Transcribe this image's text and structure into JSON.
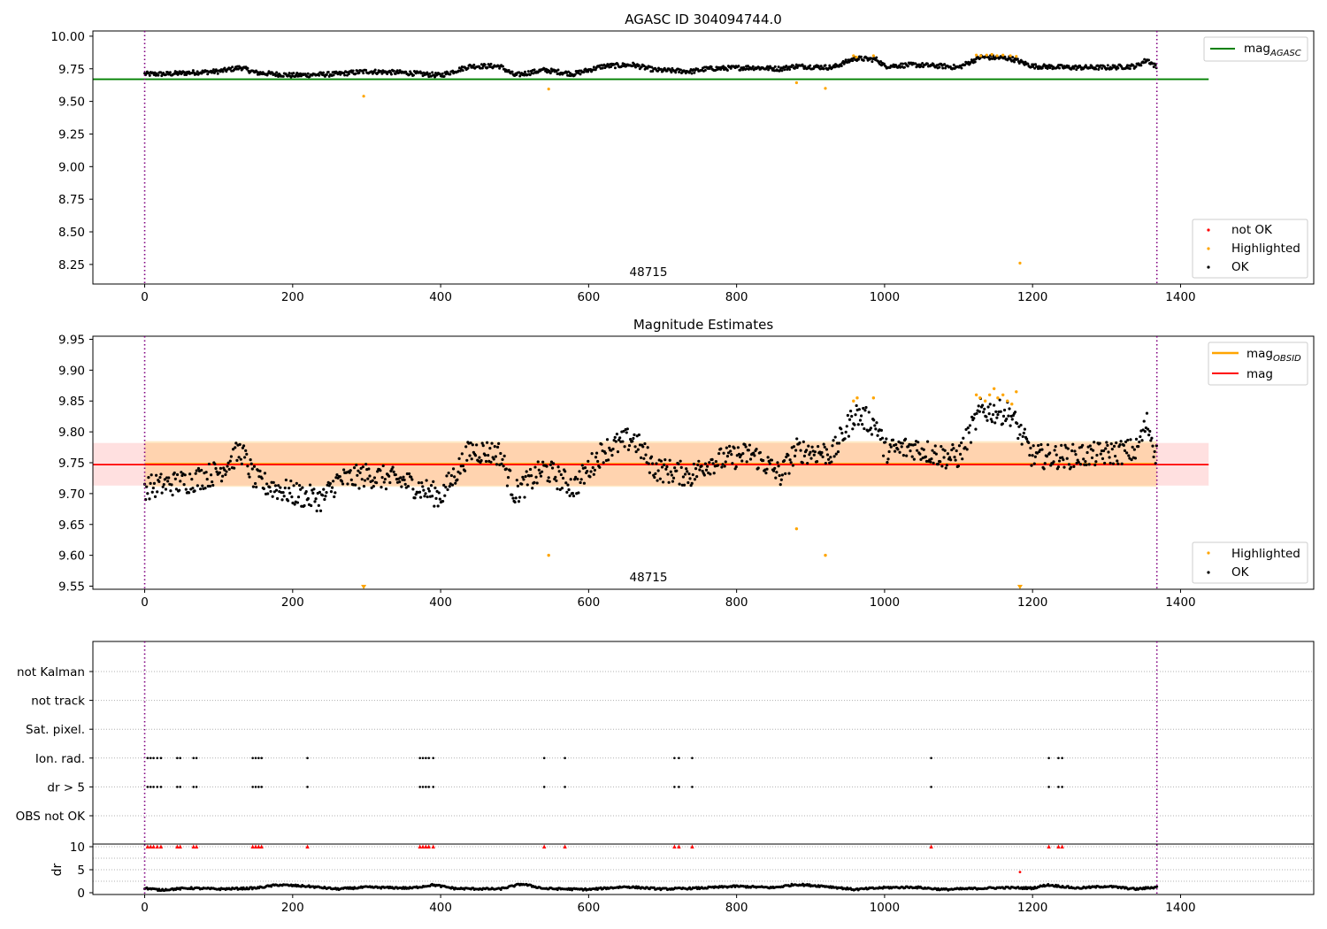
{
  "chart_data": [
    {
      "type": "scatter",
      "title": "AGASC ID 304094744.0",
      "annotation": "48715",
      "xlim": [
        -70,
        1580
      ],
      "ylim": [
        8.1,
        10.04
      ],
      "xticks": [
        0,
        200,
        400,
        600,
        800,
        1000,
        1200,
        1400
      ],
      "yticks": [
        8.25,
        8.5,
        8.75,
        9.0,
        9.25,
        9.5,
        9.75,
        10.0
      ],
      "ytick_labels": [
        "8.25",
        "8.50",
        "8.75",
        "9.00",
        "9.25",
        "9.50",
        "9.75",
        "10.00"
      ],
      "vlines": [
        0,
        1368
      ],
      "hline": {
        "name": "mag_AGASC",
        "label": "mag",
        "subscript": "AGASC",
        "y": 9.67,
        "x_range": [
          -70,
          1438
        ]
      },
      "legend_upper": [
        {
          "label": "mag",
          "subscript": "AGASC",
          "color": "#008000"
        }
      ],
      "legend_lower": [
        {
          "label": "not OK",
          "color": "#ff0000"
        },
        {
          "label": "Highlighted",
          "color": "#ffa500"
        },
        {
          "label": "OK",
          "color": "#000000"
        }
      ],
      "series": [
        {
          "name": "OK",
          "color": "#000000",
          "trend": [
            [
              0,
              9.71
            ],
            [
              30,
              9.71
            ],
            [
              60,
              9.72
            ],
            [
              100,
              9.73
            ],
            [
              130,
              9.76
            ],
            [
              150,
              9.72
            ],
            [
              200,
              9.7
            ],
            [
              260,
              9.71
            ],
            [
              300,
              9.73
            ],
            [
              350,
              9.72
            ],
            [
              400,
              9.7
            ],
            [
              440,
              9.77
            ],
            [
              480,
              9.77
            ],
            [
              500,
              9.7
            ],
            [
              540,
              9.74
            ],
            [
              580,
              9.71
            ],
            [
              620,
              9.77
            ],
            [
              660,
              9.78
            ],
            [
              690,
              9.74
            ],
            [
              740,
              9.73
            ],
            [
              760,
              9.75
            ],
            [
              820,
              9.76
            ],
            [
              860,
              9.75
            ],
            [
              880,
              9.77
            ],
            [
              930,
              9.76
            ],
            [
              960,
              9.83
            ],
            [
              990,
              9.82
            ],
            [
              1000,
              9.77
            ],
            [
              1040,
              9.78
            ],
            [
              1080,
              9.77
            ],
            [
              1100,
              9.76
            ],
            [
              1130,
              9.84
            ],
            [
              1170,
              9.83
            ],
            [
              1200,
              9.77
            ],
            [
              1250,
              9.76
            ],
            [
              1300,
              9.76
            ],
            [
              1340,
              9.77
            ],
            [
              1355,
              9.82
            ],
            [
              1368,
              9.76
            ]
          ]
        },
        {
          "name": "Highlighted",
          "color": "#ffa500",
          "points": [
            [
              296,
              9.54
            ],
            [
              546,
              9.595
            ],
            [
              881,
              9.643
            ],
            [
              920,
              9.6
            ],
            [
              1183,
              8.26
            ],
            [
              958,
              9.85
            ],
            [
              962,
              9.84
            ],
            [
              985,
              9.85
            ],
            [
              1124,
              9.855
            ],
            [
              1130,
              9.85
            ],
            [
              1138,
              9.855
            ],
            [
              1145,
              9.86
            ],
            [
              1152,
              9.85
            ],
            [
              1160,
              9.855
            ],
            [
              1170,
              9.85
            ],
            [
              1178,
              9.845
            ]
          ]
        }
      ]
    },
    {
      "type": "scatter",
      "title": "Magnitude Estimates",
      "annotation": "48715",
      "xlim": [
        -70,
        1580
      ],
      "ylim": [
        9.545,
        9.955
      ],
      "xticks": [
        0,
        200,
        400,
        600,
        800,
        1000,
        1200,
        1400
      ],
      "yticks": [
        9.55,
        9.6,
        9.65,
        9.7,
        9.75,
        9.8,
        9.85,
        9.9,
        9.95
      ],
      "ytick_labels": [
        "9.55",
        "9.60",
        "9.65",
        "9.70",
        "9.75",
        "9.80",
        "9.85",
        "9.90",
        "9.95"
      ],
      "vlines": [
        0,
        1368
      ],
      "mag_line": {
        "label": "mag",
        "y": 9.747,
        "band": [
          9.713,
          9.782
        ],
        "x_range": [
          -70,
          1438
        ],
        "color": "#ff0000"
      },
      "mag_obsid": {
        "label": "mag",
        "subscript": "OBSID",
        "y": 9.748,
        "band": [
          9.711,
          9.785
        ],
        "x_range": [
          0,
          1368
        ],
        "color": "#ffa500"
      },
      "legend_upper": [
        {
          "label": "mag",
          "subscript": "OBSID",
          "color": "#ffa500"
        },
        {
          "label": "mag",
          "subscript": "",
          "color": "#ff0000"
        }
      ],
      "legend_lower": [
        {
          "label": "Highlighted",
          "color": "#ffa500"
        },
        {
          "label": "OK",
          "color": "#000000"
        }
      ],
      "series": [
        {
          "name": "OK",
          "color": "#000000",
          "trend": [
            [
              0,
              9.71
            ],
            [
              30,
              9.715
            ],
            [
              60,
              9.72
            ],
            [
              100,
              9.735
            ],
            [
              130,
              9.77
            ],
            [
              150,
              9.72
            ],
            [
              200,
              9.7
            ],
            [
              240,
              9.69
            ],
            [
              260,
              9.72
            ],
            [
              300,
              9.73
            ],
            [
              350,
              9.72
            ],
            [
              400,
              9.695
            ],
            [
              440,
              9.77
            ],
            [
              480,
              9.765
            ],
            [
              500,
              9.7
            ],
            [
              540,
              9.74
            ],
            [
              580,
              9.71
            ],
            [
              620,
              9.77
            ],
            [
              660,
              9.79
            ],
            [
              690,
              9.74
            ],
            [
              740,
              9.73
            ],
            [
              760,
              9.75
            ],
            [
              820,
              9.765
            ],
            [
              860,
              9.73
            ],
            [
              880,
              9.77
            ],
            [
              930,
              9.765
            ],
            [
              960,
              9.83
            ],
            [
              990,
              9.81
            ],
            [
              1000,
              9.77
            ],
            [
              1040,
              9.775
            ],
            [
              1080,
              9.76
            ],
            [
              1100,
              9.76
            ],
            [
              1130,
              9.835
            ],
            [
              1170,
              9.83
            ],
            [
              1200,
              9.76
            ],
            [
              1250,
              9.76
            ],
            [
              1300,
              9.765
            ],
            [
              1340,
              9.77
            ],
            [
              1355,
              9.815
            ],
            [
              1368,
              9.76
            ]
          ]
        },
        {
          "name": "Highlighted",
          "color": "#ffa500",
          "points": [
            [
              881,
              9.643
            ],
            [
              546,
              9.6
            ],
            [
              920,
              9.6
            ],
            [
              958,
              9.85
            ],
            [
              963,
              9.855
            ],
            [
              985,
              9.855
            ],
            [
              1124,
              9.86
            ],
            [
              1129,
              9.855
            ],
            [
              1136,
              9.85
            ],
            [
              1142,
              9.86
            ],
            [
              1148,
              9.87
            ],
            [
              1153,
              9.855
            ],
            [
              1160,
              9.86
            ],
            [
              1166,
              9.85
            ],
            [
              1172,
              9.845
            ],
            [
              1178,
              9.865
            ]
          ],
          "offscale_markers": [
            296,
            1183
          ]
        }
      ]
    },
    {
      "type": "scatter",
      "title": "",
      "xlim": [
        -70,
        1580
      ],
      "xticks": [
        0,
        200,
        400,
        600,
        800,
        1000,
        1200,
        1400
      ],
      "vlines": [
        0,
        1368
      ],
      "flag_rows": [
        "not Kalman",
        "not track",
        "Sat. pixel.",
        "Ion. rad.",
        "dr > 5",
        "OBS not OK"
      ],
      "flag_points": {
        "Ion. rad.": [
          4,
          8,
          12,
          17,
          22,
          44,
          48,
          66,
          70,
          146,
          150,
          154,
          158,
          220,
          372,
          376,
          380,
          384,
          390,
          540,
          568,
          716,
          722,
          740,
          1063,
          1222,
          1235,
          1240
        ],
        "dr > 5": [
          4,
          8,
          12,
          17,
          22,
          44,
          48,
          66,
          70,
          146,
          150,
          154,
          158,
          220,
          372,
          376,
          380,
          384,
          390,
          540,
          568,
          716,
          722,
          740,
          1063,
          1222,
          1235,
          1240
        ]
      },
      "dr_panel": {
        "ylabel": "dr",
        "ylim": [
          0,
          10
        ],
        "yticks": [
          0,
          5,
          10
        ],
        "ytick_labels": [
          "0",
          "5",
          "10"
        ],
        "clipped_red_x": [
          4,
          8,
          12,
          17,
          22,
          44,
          48,
          66,
          70,
          146,
          150,
          154,
          158,
          220,
          372,
          376,
          380,
          384,
          390,
          540,
          568,
          716,
          722,
          740,
          1063,
          1222,
          1235,
          1240
        ],
        "red_points": [
          [
            1183,
            4.5
          ]
        ],
        "trend": [
          [
            0,
            1.0
          ],
          [
            20,
            0.6
          ],
          [
            60,
            1.0
          ],
          [
            100,
            0.8
          ],
          [
            150,
            1.0
          ],
          [
            180,
            1.7
          ],
          [
            220,
            1.4
          ],
          [
            260,
            0.8
          ],
          [
            300,
            1.2
          ],
          [
            360,
            1.0
          ],
          [
            390,
            1.7
          ],
          [
            420,
            0.9
          ],
          [
            480,
            0.8
          ],
          [
            510,
            1.9
          ],
          [
            540,
            0.9
          ],
          [
            600,
            0.7
          ],
          [
            650,
            1.3
          ],
          [
            700,
            0.8
          ],
          [
            750,
            1.0
          ],
          [
            800,
            1.4
          ],
          [
            850,
            1.1
          ],
          [
            880,
            1.8
          ],
          [
            920,
            1.4
          ],
          [
            960,
            0.7
          ],
          [
            1000,
            1.1
          ],
          [
            1040,
            1.2
          ],
          [
            1080,
            0.7
          ],
          [
            1120,
            0.9
          ],
          [
            1160,
            1.1
          ],
          [
            1200,
            1.0
          ],
          [
            1220,
            1.7
          ],
          [
            1260,
            1.0
          ],
          [
            1300,
            1.4
          ],
          [
            1340,
            0.8
          ],
          [
            1368,
            1.2
          ]
        ]
      }
    }
  ]
}
